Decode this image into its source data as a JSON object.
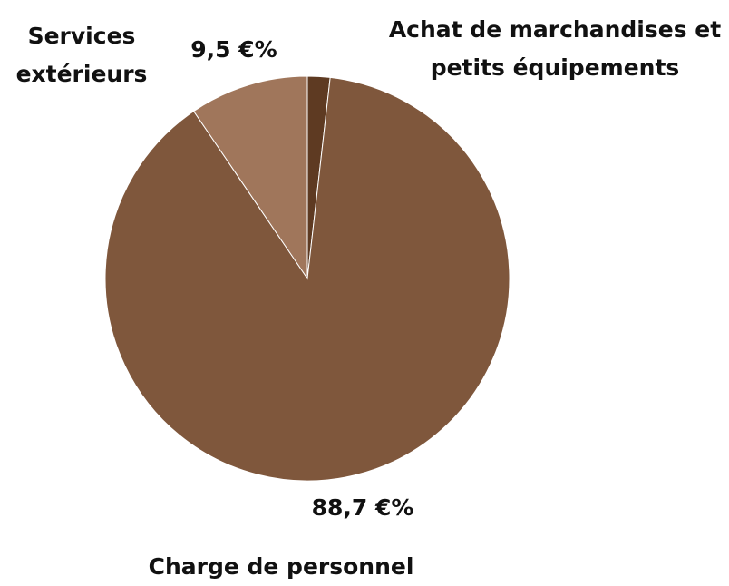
{
  "chart_data": {
    "type": "pie",
    "categories": [
      "Achat de marchandises et petits équipements",
      "Charge de personnel",
      "Services extérieurs"
    ],
    "values": [
      1.8,
      88.7,
      9.5
    ],
    "value_labels": [
      null,
      "88,7 €%",
      "9,5 €%"
    ],
    "colors": [
      "#5e3a22",
      "#7f573c",
      "#a0765b"
    ]
  }
}
